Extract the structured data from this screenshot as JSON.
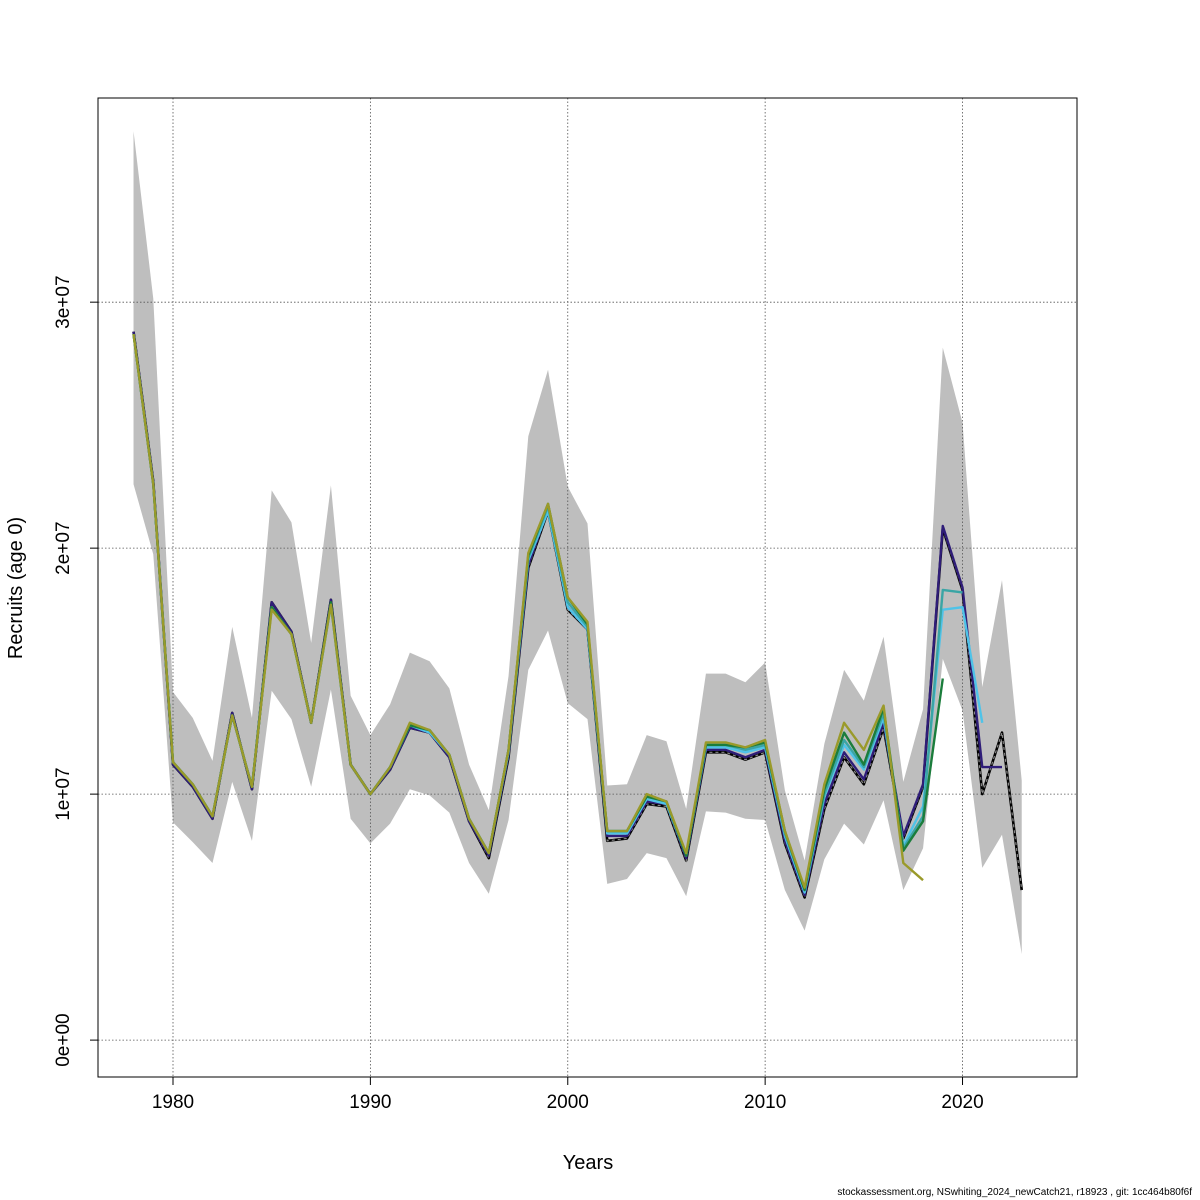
{
  "footer": "stockassessment.org, NSwhiting_2024_newCatch21, r18923 , git: 1cc464b80f6f",
  "chart_data": {
    "type": "line",
    "title": "",
    "xlabel": "Years",
    "ylabel": "Recruits (age 0)",
    "xlim": [
      1976.2,
      2025.8
    ],
    "ylim": [
      -1500000,
      38300000
    ],
    "x_ticks": [
      1980,
      1990,
      2000,
      2010,
      2020
    ],
    "x_tick_labels": [
      "1980",
      "1990",
      "2000",
      "2010",
      "2020"
    ],
    "y_ticks": [
      0,
      10000000,
      20000000,
      30000000
    ],
    "y_tick_labels": [
      "0e+00",
      "1e+07",
      "2e+07",
      "3e+07"
    ],
    "grid": true,
    "legend": "none",
    "confidence_band": {
      "color": "#bebebe",
      "x": [
        1978,
        1979,
        1980,
        1981,
        1982,
        1983,
        1984,
        1985,
        1986,
        1987,
        1988,
        1989,
        1990,
        1991,
        1992,
        1993,
        1994,
        1995,
        1996,
        1997,
        1998,
        1999,
        2000,
        2001,
        2002,
        2003,
        2004,
        2005,
        2006,
        2007,
        2008,
        2009,
        2010,
        2011,
        2012,
        2013,
        2014,
        2015,
        2016,
        2017,
        2018,
        2019,
        2020,
        2021,
        2022,
        2023
      ],
      "upper": [
        36950000,
        30150000,
        14150000,
        13100000,
        11350000,
        16800000,
        13100000,
        22350000,
        21050000,
        16150000,
        22550000,
        14000000,
        12400000,
        13650000,
        15750000,
        15400000,
        14300000,
        11200000,
        9350000,
        14800000,
        24550000,
        27250000,
        22500000,
        21000000,
        10350000,
        10400000,
        12400000,
        12150000,
        9400000,
        14900000,
        14900000,
        14550000,
        15350000,
        10150000,
        7300000,
        12050000,
        15050000,
        13800000,
        16400000,
        10500000,
        13450000,
        28150000,
        25100000,
        14350000,
        18700000,
        10550000
      ],
      "lower": [
        22600000,
        19750000,
        8850000,
        8050000,
        7200000,
        10500000,
        8100000,
        14200000,
        13050000,
        10300000,
        14250000,
        9000000,
        8000000,
        8800000,
        10200000,
        9950000,
        9250000,
        7200000,
        5950000,
        8950000,
        15050000,
        16650000,
        13700000,
        13050000,
        6350000,
        6550000,
        7600000,
        7400000,
        5850000,
        9300000,
        9250000,
        9000000,
        8950000,
        6100000,
        4450000,
        7350000,
        8800000,
        7950000,
        9750000,
        6100000,
        7800000,
        15500000,
        13400000,
        7000000,
        8350000,
        3500000
      ]
    },
    "series": [
      {
        "color": "#000000",
        "dashed": true,
        "x": [
          1978,
          1979,
          1980,
          1981,
          1982,
          1983,
          1984,
          1985,
          1986,
          1987,
          1988,
          1989,
          1990,
          1991,
          1992,
          1993,
          1994,
          1995,
          1996,
          1997,
          1998,
          1999,
          2000,
          2001,
          2002,
          2003,
          2004,
          2005,
          2006,
          2007,
          2008,
          2009,
          2010,
          2011,
          2012,
          2013,
          2014,
          2015,
          2016,
          2017,
          2018,
          2019,
          2020,
          2021,
          2022,
          2023
        ],
        "values": [
          28800000,
          22700000,
          11200000,
          10300000,
          9000000,
          13300000,
          10200000,
          17800000,
          16600000,
          12900000,
          17900000,
          11200000,
          10000000,
          11000000,
          12700000,
          12500000,
          11500000,
          8900000,
          7400000,
          11500000,
          19200000,
          21500000,
          17500000,
          16700000,
          8100000,
          8200000,
          9600000,
          9500000,
          7300000,
          11700000,
          11700000,
          11400000,
          11700000,
          8000000,
          5800000,
          9400000,
          11500000,
          10400000,
          12700000,
          8200000,
          10300000,
          20800000,
          18300000,
          10000000,
          12500000,
          6100000
        ]
      },
      {
        "color": "#2f1d78",
        "dashed": false,
        "x": [
          1978,
          1979,
          1980,
          1981,
          1982,
          1983,
          1984,
          1985,
          1986,
          1987,
          1988,
          1989,
          1990,
          1991,
          1992,
          1993,
          1994,
          1995,
          1996,
          1997,
          1998,
          1999,
          2000,
          2001,
          2002,
          2003,
          2004,
          2005,
          2006,
          2007,
          2008,
          2009,
          2010,
          2011,
          2012,
          2013,
          2014,
          2015,
          2016,
          2017,
          2018,
          2019,
          2020,
          2021,
          2022
        ],
        "values": [
          28800000,
          22700000,
          11200000,
          10300000,
          9000000,
          13300000,
          10200000,
          17800000,
          16600000,
          12900000,
          17900000,
          11200000,
          10000000,
          11000000,
          12700000,
          12500000,
          11500000,
          8900000,
          7500000,
          11600000,
          19300000,
          21600000,
          17600000,
          16700000,
          8300000,
          8300000,
          9700000,
          9600000,
          7400000,
          11800000,
          11800000,
          11500000,
          11800000,
          8100000,
          5900000,
          9600000,
          11700000,
          10600000,
          12900000,
          8300000,
          10400000,
          20900000,
          18400000,
          11100000,
          11100000
        ]
      },
      {
        "color": "#4fc3e8",
        "dashed": false,
        "x": [
          1978,
          1979,
          1980,
          1981,
          1982,
          1983,
          1984,
          1985,
          1986,
          1987,
          1988,
          1989,
          1990,
          1991,
          1992,
          1993,
          1994,
          1995,
          1996,
          1997,
          1998,
          1999,
          2000,
          2001,
          2002,
          2003,
          2004,
          2005,
          2006,
          2007,
          2008,
          2009,
          2010,
          2011,
          2012,
          2013,
          2014,
          2015,
          2016,
          2017,
          2018,
          2019,
          2020,
          2021
        ],
        "values": [
          28700000,
          22600000,
          11300000,
          10400000,
          9100000,
          13200000,
          10300000,
          17600000,
          16500000,
          12900000,
          17700000,
          11200000,
          10000000,
          11100000,
          12800000,
          12500000,
          11600000,
          9000000,
          7600000,
          11700000,
          19500000,
          21500000,
          17600000,
          16700000,
          8400000,
          8400000,
          9800000,
          9600000,
          7500000,
          11900000,
          11900000,
          11700000,
          11900000,
          8300000,
          6000000,
          9900000,
          12000000,
          11000000,
          13100000,
          7900000,
          9500000,
          17500000,
          17600000,
          12900000
        ]
      },
      {
        "color": "#3aa5a5",
        "dashed": false,
        "x": [
          1978,
          1979,
          1980,
          1981,
          1982,
          1983,
          1984,
          1985,
          1986,
          1987,
          1988,
          1989,
          1990,
          1991,
          1992,
          1993,
          1994,
          1995,
          1996,
          1997,
          1998,
          1999,
          2000,
          2001,
          2002,
          2003,
          2004,
          2005,
          2006,
          2007,
          2008,
          2009,
          2010,
          2011,
          2012,
          2013,
          2014,
          2015,
          2016,
          2017,
          2018,
          2019,
          2020
        ],
        "values": [
          28700000,
          22600000,
          11300000,
          10400000,
          9100000,
          13200000,
          10300000,
          17600000,
          16500000,
          12900000,
          17700000,
          11200000,
          10000000,
          11100000,
          12800000,
          12600000,
          11600000,
          9000000,
          7600000,
          11800000,
          19600000,
          21700000,
          17800000,
          16800000,
          8500000,
          8500000,
          9900000,
          9700000,
          7500000,
          12000000,
          12000000,
          11800000,
          12000000,
          8400000,
          6100000,
          10000000,
          12200000,
          11100000,
          13300000,
          7800000,
          9100000,
          18300000,
          18200000
        ]
      },
      {
        "color": "#1b7d3c",
        "dashed": false,
        "x": [
          1978,
          1979,
          1980,
          1981,
          1982,
          1983,
          1984,
          1985,
          1986,
          1987,
          1988,
          1989,
          1990,
          1991,
          1992,
          1993,
          1994,
          1995,
          1996,
          1997,
          1998,
          1999,
          2000,
          2001,
          2002,
          2003,
          2004,
          2005,
          2006,
          2007,
          2008,
          2009,
          2010,
          2011,
          2012,
          2013,
          2014,
          2015,
          2016,
          2017,
          2018,
          2019
        ],
        "values": [
          28700000,
          22600000,
          11300000,
          10400000,
          9100000,
          13200000,
          10300000,
          17600000,
          16500000,
          12900000,
          17800000,
          11200000,
          10000000,
          11100000,
          12800000,
          12600000,
          11600000,
          9000000,
          7600000,
          11800000,
          19700000,
          21800000,
          18000000,
          16900000,
          8500000,
          8500000,
          9900000,
          9700000,
          7500000,
          12000000,
          12000000,
          11900000,
          12100000,
          8500000,
          6100000,
          10200000,
          12500000,
          11200000,
          13500000,
          7700000,
          8900000,
          14700000
        ]
      },
      {
        "color": "#9a9a2a",
        "dashed": false,
        "x": [
          1978,
          1979,
          1980,
          1981,
          1982,
          1983,
          1984,
          1985,
          1986,
          1987,
          1988,
          1989,
          1990,
          1991,
          1992,
          1993,
          1994,
          1995,
          1996,
          1997,
          1998,
          1999,
          2000,
          2001,
          2002,
          2003,
          2004,
          2005,
          2006,
          2007,
          2008,
          2009,
          2010,
          2011,
          2012,
          2013,
          2014,
          2015,
          2016,
          2017,
          2018
        ],
        "values": [
          28700000,
          22600000,
          11300000,
          10400000,
          9100000,
          13200000,
          10300000,
          17500000,
          16500000,
          12900000,
          17700000,
          11200000,
          10000000,
          11100000,
          12900000,
          12600000,
          11600000,
          9000000,
          7600000,
          11800000,
          19800000,
          21800000,
          18000000,
          17000000,
          8500000,
          8500000,
          10000000,
          9700000,
          7600000,
          12100000,
          12100000,
          11900000,
          12200000,
          8500000,
          6200000,
          10400000,
          12900000,
          11800000,
          13600000,
          7200000,
          6500000
        ]
      }
    ]
  }
}
